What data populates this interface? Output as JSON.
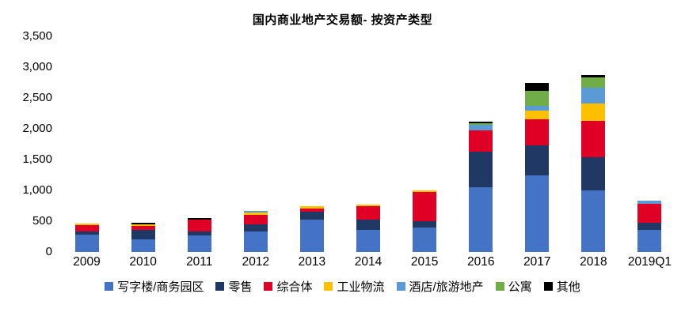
{
  "chart_data": {
    "type": "bar",
    "stacked": true,
    "title": "国内商业地产交易额- 按资产类型",
    "categories": [
      "2009",
      "2010",
      "2011",
      "2012",
      "2013",
      "2014",
      "2015",
      "2016",
      "2017",
      "2018",
      "2019Q1"
    ],
    "series": [
      {
        "name": "写字楼/商务园区",
        "color": "#4472C4",
        "values": [
          285,
          205,
          270,
          330,
          525,
          365,
          400,
          1050,
          1250,
          1000,
          355
        ]
      },
      {
        "name": "零售",
        "color": "#1F3864",
        "values": [
          50,
          150,
          60,
          115,
          125,
          160,
          95,
          575,
          485,
          540,
          115
        ]
      },
      {
        "name": "综合体",
        "color": "#E00025",
        "values": [
          105,
          70,
          200,
          160,
          60,
          225,
          480,
          355,
          415,
          590,
          310
        ]
      },
      {
        "name": "工业物流",
        "color": "#FFC000",
        "values": [
          25,
          25,
          0,
          35,
          30,
          25,
          25,
          0,
          140,
          280,
          0
        ]
      },
      {
        "name": "酒店/旅游地产",
        "color": "#5B9BD5",
        "values": [
          0,
          0,
          0,
          25,
          0,
          0,
          0,
          85,
          85,
          260,
          50
        ]
      },
      {
        "name": "公寓",
        "color": "#70AD47",
        "values": [
          0,
          0,
          0,
          0,
          0,
          0,
          0,
          20,
          235,
          170,
          0
        ]
      },
      {
        "name": "其他",
        "color": "#000000",
        "values": [
          0,
          25,
          25,
          0,
          0,
          0,
          0,
          25,
          130,
          30,
          0
        ]
      }
    ],
    "ylim": [
      0,
      3500
    ],
    "y_tick_step": 500,
    "y_ticks": [
      "0",
      "500",
      "1,000",
      "1,500",
      "2,000",
      "2,500",
      "3,000",
      "3,500"
    ],
    "grid": false,
    "legend_position": "bottom"
  }
}
